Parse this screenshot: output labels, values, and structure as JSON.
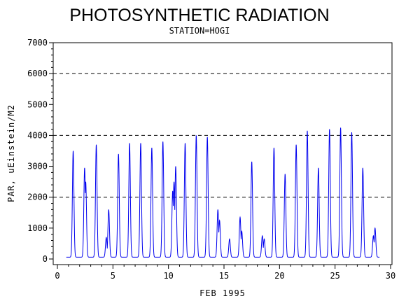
{
  "chart_data": {
    "type": "line",
    "title": "PHOTOSYNTHETIC RADIATION",
    "subtitle": "STATION=HOGI",
    "xlabel": "FEB 1995",
    "ylabel": "PAR, uEinstein/M2",
    "xlim": [
      0,
      30
    ],
    "ylim": [
      0,
      7000
    ],
    "xticks": [
      0,
      5,
      10,
      15,
      20,
      25,
      30
    ],
    "yticks": [
      0,
      1000,
      2000,
      3000,
      4000,
      5000,
      6000,
      7000
    ],
    "reference_lines": [
      2000,
      4000,
      6000
    ],
    "grid": false,
    "series_color": "#0000ee",
    "daily_peaks": [
      {
        "day": 1,
        "peaks": [
          {
            "x": 0.42,
            "y": 3500
          }
        ]
      },
      {
        "day": 2,
        "peaks": [
          {
            "x": 0.45,
            "y": 2950
          },
          {
            "x": 0.55,
            "y": 2500
          }
        ]
      },
      {
        "day": 3,
        "peaks": [
          {
            "x": 0.5,
            "y": 3700
          }
        ]
      },
      {
        "day": 4,
        "peaks": [
          {
            "x": 0.4,
            "y": 700
          },
          {
            "x": 0.62,
            "y": 1600
          }
        ]
      },
      {
        "day": 5,
        "peaks": [
          {
            "x": 0.5,
            "y": 3400
          }
        ]
      },
      {
        "day": 6,
        "peaks": [
          {
            "x": 0.5,
            "y": 3750
          }
        ]
      },
      {
        "day": 7,
        "peaks": [
          {
            "x": 0.5,
            "y": 3750
          }
        ]
      },
      {
        "day": 8,
        "peaks": [
          {
            "x": 0.5,
            "y": 3600
          }
        ]
      },
      {
        "day": 9,
        "peaks": [
          {
            "x": 0.5,
            "y": 3800
          }
        ]
      },
      {
        "day": 10,
        "peaks": [
          {
            "x": 0.38,
            "y": 2200
          },
          {
            "x": 0.5,
            "y": 2500
          },
          {
            "x": 0.65,
            "y": 3000
          }
        ]
      },
      {
        "day": 11,
        "peaks": [
          {
            "x": 0.5,
            "y": 3750
          }
        ]
      },
      {
        "day": 12,
        "peaks": [
          {
            "x": 0.5,
            "y": 4000
          }
        ]
      },
      {
        "day": 13,
        "peaks": [
          {
            "x": 0.5,
            "y": 3950
          }
        ]
      },
      {
        "day": 14,
        "peaks": [
          {
            "x": 0.45,
            "y": 1600
          },
          {
            "x": 0.6,
            "y": 1250
          }
        ]
      },
      {
        "day": 15,
        "peaks": [
          {
            "x": 0.5,
            "y": 650
          }
        ]
      },
      {
        "day": 16,
        "peaks": [
          {
            "x": 0.45,
            "y": 1350
          },
          {
            "x": 0.6,
            "y": 900
          }
        ]
      },
      {
        "day": 17,
        "peaks": [
          {
            "x": 0.5,
            "y": 3150
          }
        ]
      },
      {
        "day": 18,
        "peaks": [
          {
            "x": 0.45,
            "y": 750
          },
          {
            "x": 0.62,
            "y": 650
          }
        ]
      },
      {
        "day": 19,
        "peaks": [
          {
            "x": 0.5,
            "y": 3600
          }
        ]
      },
      {
        "day": 20,
        "peaks": [
          {
            "x": 0.5,
            "y": 2750
          }
        ]
      },
      {
        "day": 21,
        "peaks": [
          {
            "x": 0.5,
            "y": 3700
          }
        ]
      },
      {
        "day": 22,
        "peaks": [
          {
            "x": 0.5,
            "y": 4150
          }
        ]
      },
      {
        "day": 23,
        "peaks": [
          {
            "x": 0.5,
            "y": 2950
          }
        ]
      },
      {
        "day": 24,
        "peaks": [
          {
            "x": 0.5,
            "y": 4200
          }
        ]
      },
      {
        "day": 25,
        "peaks": [
          {
            "x": 0.5,
            "y": 4250
          }
        ]
      },
      {
        "day": 26,
        "peaks": [
          {
            "x": 0.5,
            "y": 4100
          }
        ]
      },
      {
        "day": 27,
        "peaks": [
          {
            "x": 0.5,
            "y": 2950
          }
        ]
      },
      {
        "day": 28,
        "peaks": [
          {
            "x": 0.45,
            "y": 750
          },
          {
            "x": 0.6,
            "y": 1000
          }
        ]
      }
    ]
  }
}
